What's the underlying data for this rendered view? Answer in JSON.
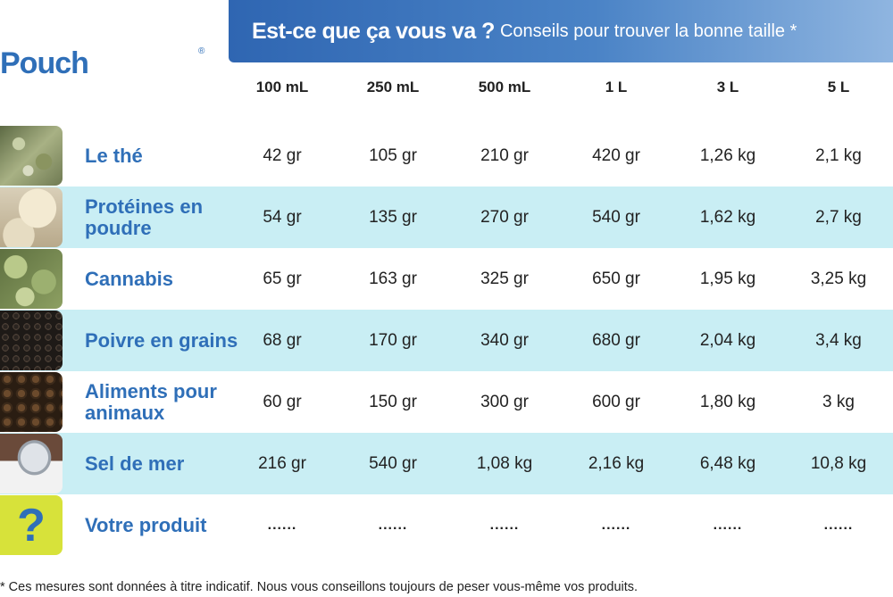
{
  "brand": {
    "logo": "Pouch",
    "registered": "®"
  },
  "banner": {
    "main": "Est-ce que ça vous va ?",
    "sub": "Conseils pour trouver la bonne taille *"
  },
  "columns": [
    "100 mL",
    "250 mL",
    "500 mL",
    "1 L",
    "3 L",
    "5 L"
  ],
  "rows": [
    {
      "label": "Le thé",
      "icon": "tea-leaves-image",
      "values": [
        "42 gr",
        "105 gr",
        "210 gr",
        "420 gr",
        "1,26 kg",
        "2,1 kg"
      ]
    },
    {
      "label": "Protéines en poudre",
      "icon": "protein-powder-image",
      "values": [
        "54 gr",
        "135 gr",
        "270 gr",
        "540 gr",
        "1,62 kg",
        "2,7 kg"
      ]
    },
    {
      "label": "Cannabis",
      "icon": "cannabis-image",
      "values": [
        "65 gr",
        "163 gr",
        "325 gr",
        "650 gr",
        "1,95 kg",
        "3,25 kg"
      ]
    },
    {
      "label": "Poivre en grains",
      "icon": "peppercorn-image",
      "values": [
        "68 gr",
        "170 gr",
        "340 gr",
        "680 gr",
        "2,04 kg",
        "3,4 kg"
      ]
    },
    {
      "label": "Aliments pour animaux",
      "icon": "pet-food-image",
      "values": [
        "60 gr",
        "150 gr",
        "300 gr",
        "600 gr",
        "1,80 kg",
        "3 kg"
      ]
    },
    {
      "label": "Sel de mer",
      "icon": "sea-salt-image",
      "values": [
        "216 gr",
        "540 gr",
        "1,08 kg",
        "2,16 kg",
        "6,48 kg",
        "10,8 kg"
      ]
    },
    {
      "label": "Votre produit",
      "icon": "question-mark-icon",
      "icon_glyph": "?",
      "values": [
        "......",
        "......",
        "......",
        "......",
        "......",
        "......"
      ]
    }
  ],
  "footnote": "* Ces mesures sont données à titre indicatif. Nous vous conseillons toujours de peser vous-même vos produits.",
  "colors": {
    "brand_blue": "#2f6fb8",
    "band": "#c9eef4",
    "question_bg": "#d7e23a"
  }
}
